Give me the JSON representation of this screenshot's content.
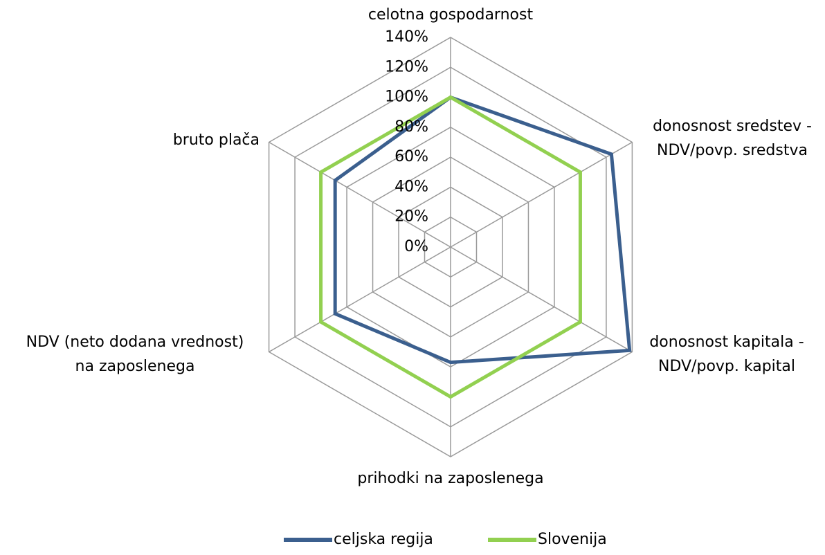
{
  "chart_data": {
    "type": "radar",
    "categories": [
      [
        "celotna gospodarnost"
      ],
      [
        "donosnost sredstev -",
        "NDV/povp. sredstva"
      ],
      [
        "donosnost kapitala -",
        "NDV/povp. kapital"
      ],
      [
        "prihodki na zaposlenega"
      ],
      [
        "NDV (neto dodana vrednost)",
        "na zaposlenega"
      ],
      [
        "bruto plača"
      ]
    ],
    "series": [
      {
        "name": "celjska regija",
        "color": "#3b5f8e",
        "values": [
          100,
          124,
          138,
          77,
          89,
          89
        ]
      },
      {
        "name": "Slovenija",
        "color": "#92d050",
        "values": [
          100,
          100,
          100,
          100,
          100,
          100
        ]
      }
    ],
    "ylim": [
      0,
      140
    ],
    "yticks": [
      {
        "value": 0,
        "label": "0%"
      },
      {
        "value": 20,
        "label": "20%"
      },
      {
        "value": 40,
        "label": "40%"
      },
      {
        "value": 60,
        "label": "60%"
      },
      {
        "value": 80,
        "label": "80%"
      },
      {
        "value": 100,
        "label": "100%"
      },
      {
        "value": 120,
        "label": "120%"
      },
      {
        "value": 140,
        "label": "140%"
      }
    ],
    "grid": true,
    "legend": "bottom"
  }
}
